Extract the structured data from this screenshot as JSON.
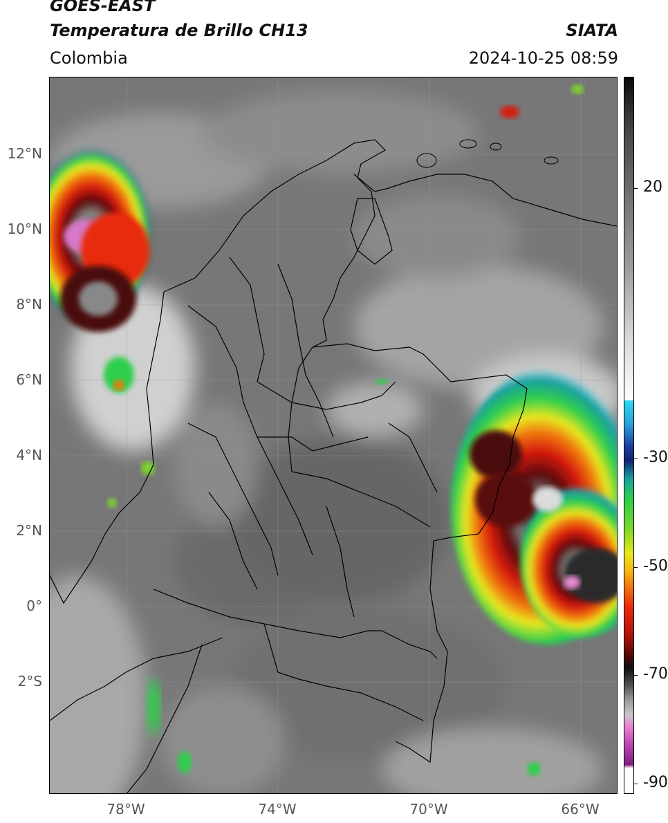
{
  "header": {
    "satellite": "GOES-EAST",
    "product": "Temperatura de Brillo CH13",
    "region": "Colombia",
    "organization": "SIATA",
    "timestamp": "2024-10-25 08:59"
  },
  "map": {
    "lat_labels": [
      "12°N",
      "10°N",
      "8°N",
      "6°N",
      "4°N",
      "2°N",
      "0°",
      "2°S"
    ],
    "lon_labels": [
      "78°W",
      "74°W",
      "70°W",
      "66°W"
    ]
  },
  "colorbar": {
    "labels": [
      "20",
      "-30",
      "-50",
      "-70",
      "-90"
    ],
    "colors": {
      "warm": "#5a5a5a",
      "cyan": "#2fd6f0",
      "blue": "#12236e",
      "green": "#2fcf4b",
      "yellow": "#e8e820",
      "red": "#e82a0c",
      "dark_red": "#4a0808",
      "magenta": "#c04ab4"
    }
  }
}
